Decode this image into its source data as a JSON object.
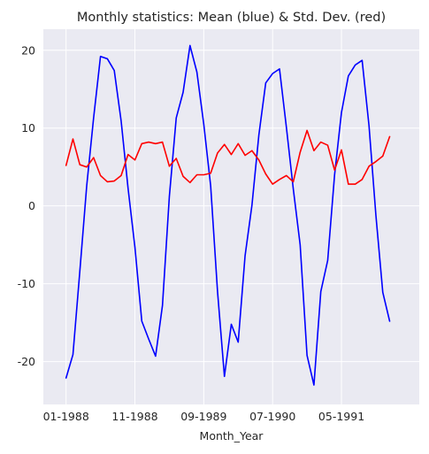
{
  "chart_data": {
    "type": "line",
    "title": "Monthly statistics: Mean (blue) & Std. Dev. (red)",
    "xlabel": "Month_Year",
    "ylabel": "",
    "x_tick_labels": [
      "01-1988",
      "11-1988",
      "09-1989",
      "07-1990",
      "05-1991"
    ],
    "x_tick_positions": [
      0,
      10,
      20,
      30,
      40
    ],
    "y_ticks": [
      -20,
      -10,
      0,
      10,
      20
    ],
    "xlim": [
      -3.3,
      51.3
    ],
    "ylim": [
      -25.5,
      22.7
    ],
    "grid": true,
    "legend": "none",
    "x": [
      0,
      1,
      2,
      3,
      4,
      5,
      6,
      7,
      8,
      9,
      10,
      11,
      12,
      13,
      14,
      15,
      16,
      17,
      18,
      19,
      20,
      21,
      22,
      23,
      24,
      25,
      26,
      27,
      28,
      29,
      30,
      31,
      32,
      33,
      34,
      35,
      36,
      37,
      38,
      39,
      40,
      41,
      42,
      43,
      44,
      45,
      46,
      47,
      48
    ],
    "series": [
      {
        "color": "#0000ff",
        "values": [
          -22.1,
          -19.1,
          -8.4,
          2.6,
          11.3,
          19.2,
          18.9,
          17.4,
          10.9,
          2.3,
          -5.3,
          -14.8,
          -17.1,
          -19.3,
          -12.8,
          1.2,
          11.3,
          14.6,
          20.6,
          17.2,
          10.5,
          2.6,
          -11.0,
          -21.9,
          -15.2,
          -17.5,
          -6.4,
          0.1,
          9.1,
          15.8,
          17.0,
          17.6,
          10.1,
          2.2,
          -5.0,
          -19.2,
          -23.0,
          -11.0,
          -7.0,
          4.0,
          12.0,
          16.7,
          18.1,
          18.7,
          10.3,
          -1.2,
          -11.1,
          -14.8,
          null
        ],
        "_range": "null-free slice is 0..47"
      },
      {
        "color": "#ff0000",
        "values": [
          5.2,
          8.6,
          5.3,
          5.0,
          6.2,
          3.9,
          3.1,
          3.2,
          3.9,
          6.6,
          5.9,
          8.0,
          8.2,
          8.0,
          8.2,
          5.1,
          6.1,
          3.8,
          3.0,
          4.0,
          4.0,
          4.2,
          6.8,
          7.9,
          6.6,
          8.0,
          6.5,
          7.1,
          5.9,
          4.1,
          2.8,
          3.4,
          3.9,
          3.1,
          6.9,
          9.7,
          7.1,
          8.2,
          7.8,
          4.6,
          7.2,
          2.8,
          2.8,
          3.4,
          5.1,
          5.7,
          6.4,
          8.9,
          null
        ],
        "_range": "null-free slice is 0..47"
      }
    ]
  },
  "colors": {
    "axes_bg": "#eaeaf2",
    "grid": "#ffffff",
    "text": "#262626"
  }
}
